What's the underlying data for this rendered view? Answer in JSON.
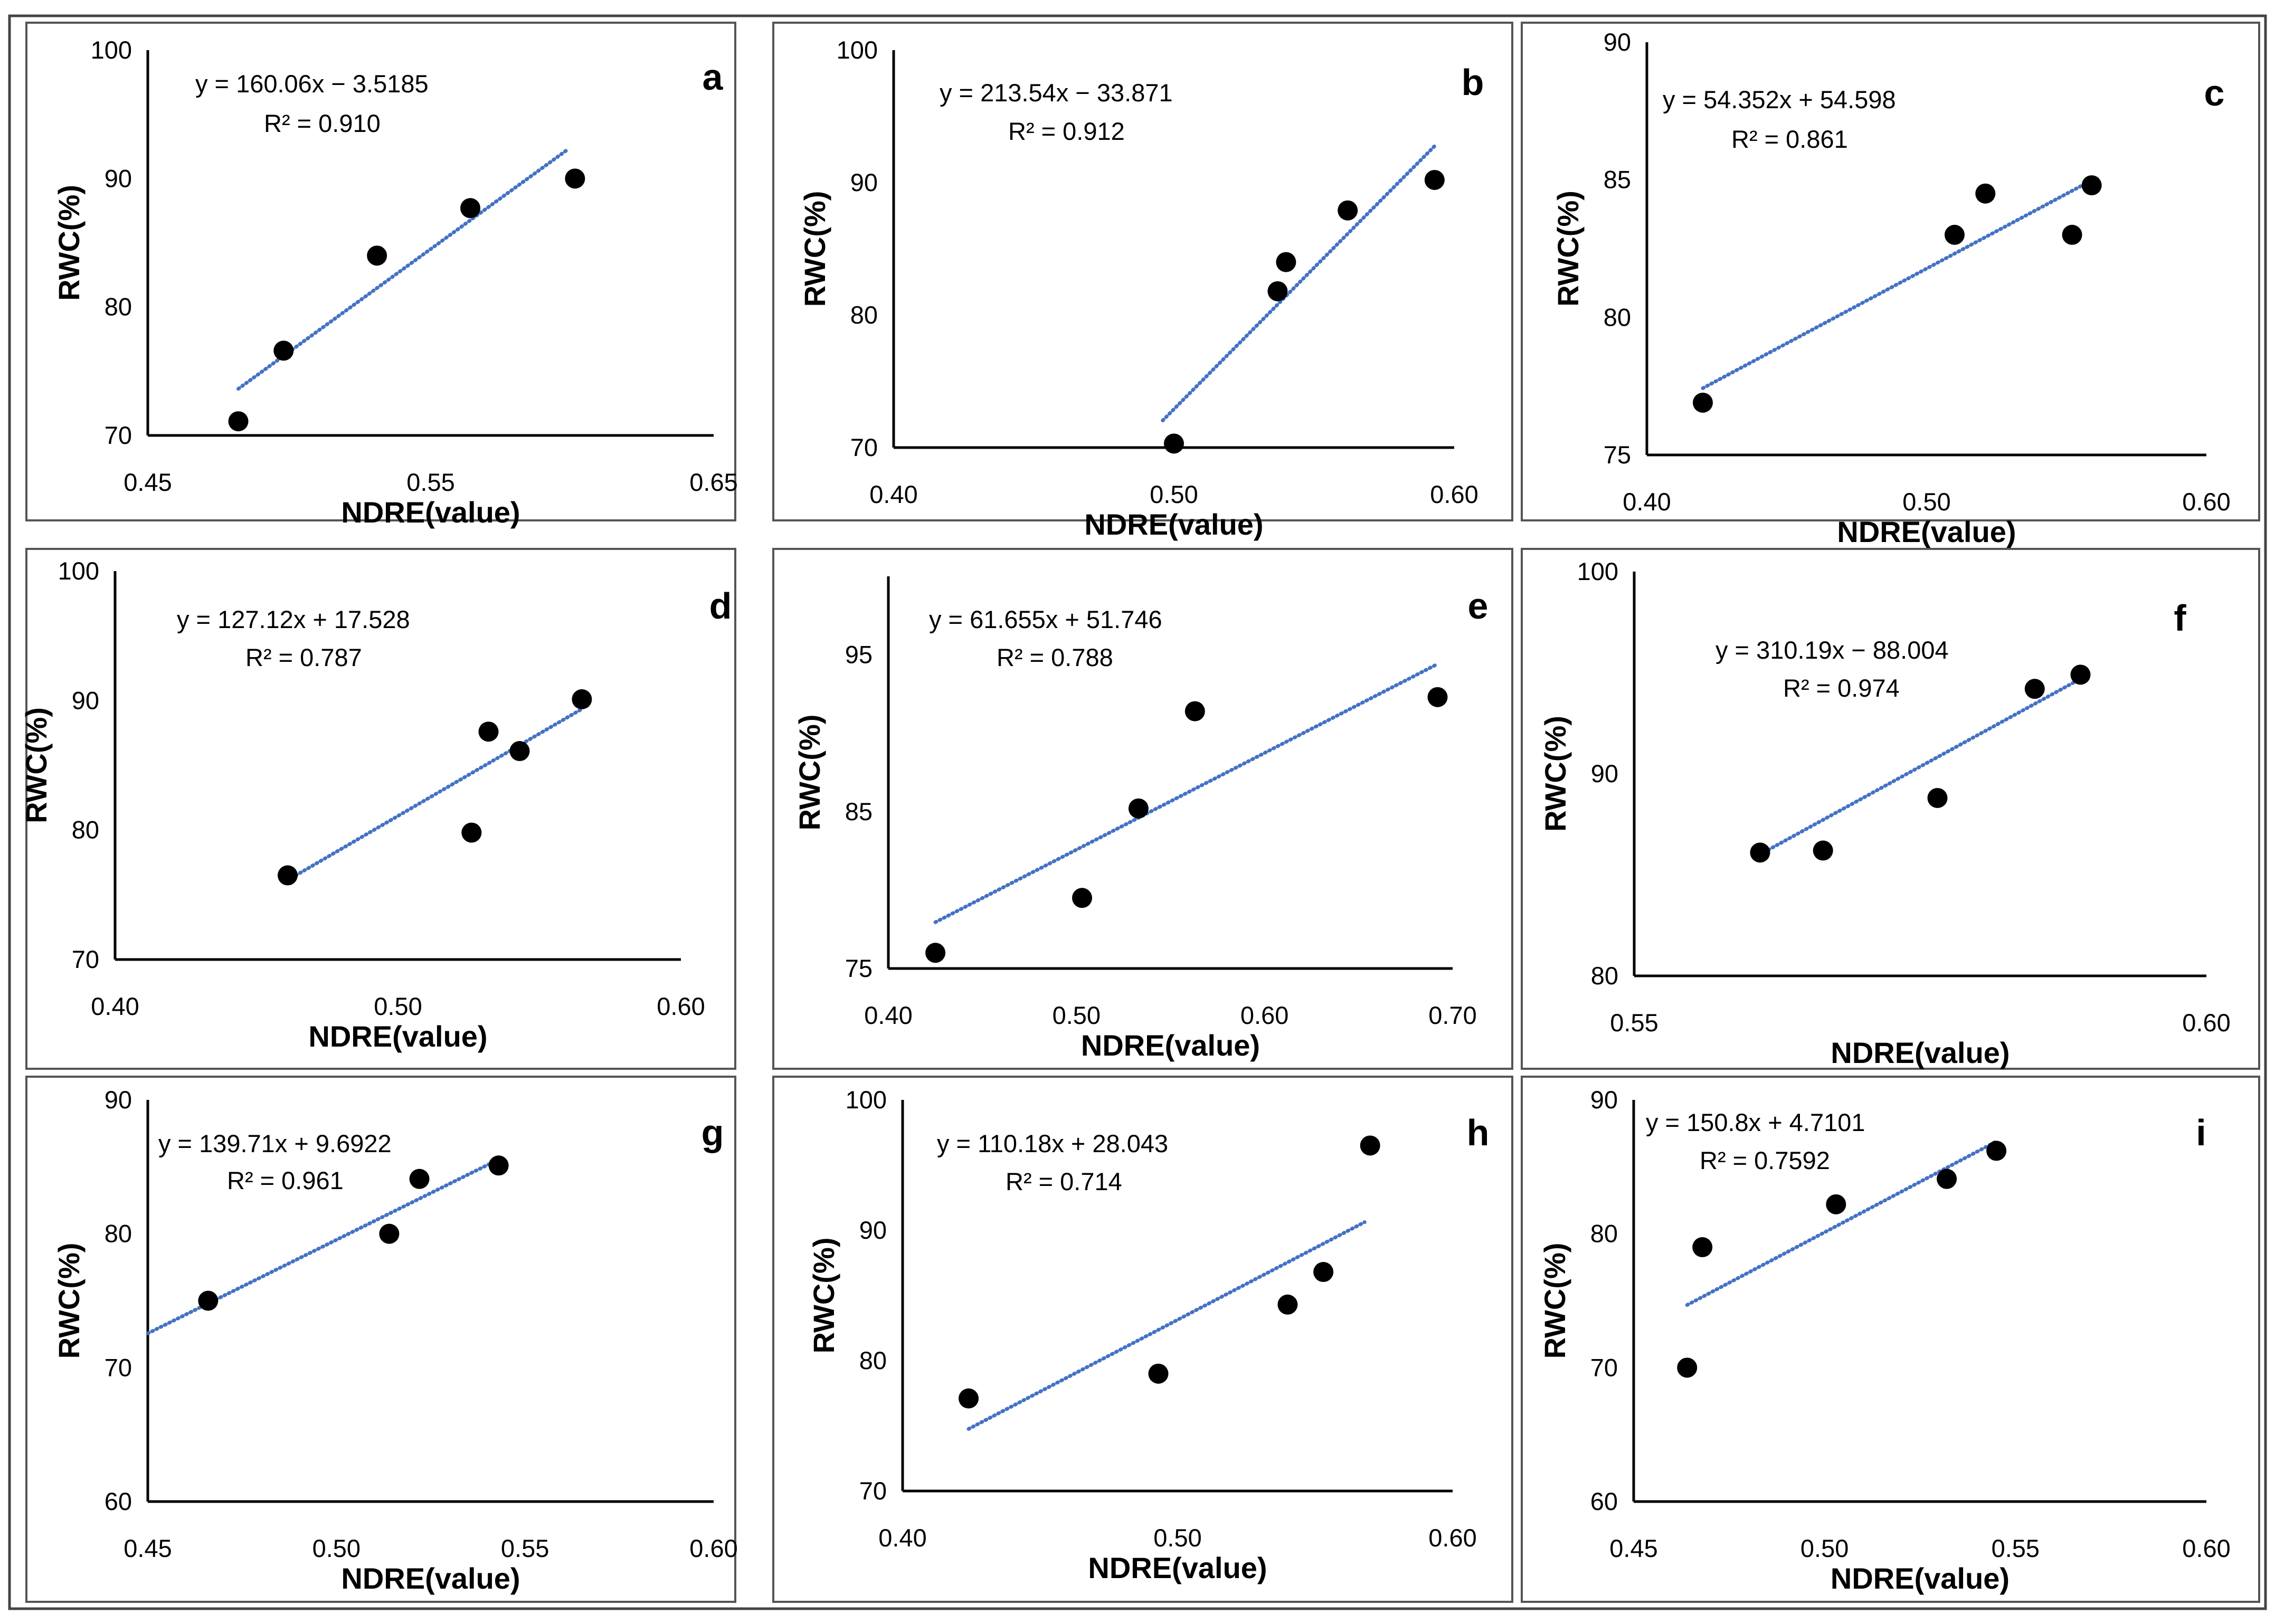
{
  "figure": {
    "style": {
      "point_color": "#000000",
      "trend_color": "#4472C4",
      "frame_color": "#555555"
    }
  },
  "chart_data": [
    {
      "panel": "a",
      "type": "scatter",
      "xlabel": "NDRE(value)",
      "ylabel": "RWC(%)",
      "xlim": [
        0.45,
        0.65
      ],
      "ylim": [
        70,
        100
      ],
      "xticks": [
        "0.45",
        "0.55",
        "0.65"
      ],
      "xtick_values": [
        0.45,
        0.55,
        0.65
      ],
      "yticks": [
        "70",
        "80",
        "90",
        "100"
      ],
      "ytick_values": [
        70,
        80,
        90,
        100
      ],
      "points": [
        [
          0.482,
          71.1
        ],
        [
          0.498,
          76.6
        ],
        [
          0.531,
          84.0
        ],
        [
          0.564,
          87.7
        ],
        [
          0.601,
          90.0
        ]
      ],
      "trendline": {
        "slope": 160.06,
        "intercept": -3.5185,
        "x_range": [
          0.482,
          0.598
        ]
      },
      "equation": "y = 160.06x − 3.5185",
      "r2": "R² = 0.910"
    },
    {
      "panel": "b",
      "type": "scatter",
      "xlabel": "NDRE(value)",
      "ylabel": "RWC(%)",
      "xlim": [
        0.4,
        0.6
      ],
      "ylim": [
        70,
        100
      ],
      "xticks": [
        "0.40",
        "0.50",
        "0.60"
      ],
      "xtick_values": [
        0.4,
        0.5,
        0.6
      ],
      "yticks": [
        "70",
        "80",
        "90",
        "100"
      ],
      "ytick_values": [
        70,
        80,
        90,
        100
      ],
      "points": [
        [
          0.5,
          70.3
        ],
        [
          0.537,
          81.8
        ],
        [
          0.54,
          84.0
        ],
        [
          0.562,
          87.9
        ],
        [
          0.593,
          90.2
        ]
      ],
      "trendline": {
        "slope": 213.54,
        "intercept": -33.871,
        "x_range": [
          0.496,
          0.593
        ]
      },
      "equation": "y = 213.54x − 33.871",
      "r2": "R² = 0.912"
    },
    {
      "panel": "c",
      "type": "scatter",
      "xlabel": "NDRE(value)",
      "ylabel": "RWC(%)",
      "xlim": [
        0.4,
        0.6
      ],
      "ylim": [
        75,
        90
      ],
      "xticks": [
        "0.40",
        "0.50",
        "0.60"
      ],
      "xtick_values": [
        0.4,
        0.5,
        0.6
      ],
      "yticks": [
        "75",
        "80",
        "85",
        "90"
      ],
      "ytick_values": [
        75,
        80,
        85,
        90
      ],
      "points": [
        [
          0.42,
          76.9
        ],
        [
          0.51,
          83.0
        ],
        [
          0.521,
          84.5
        ],
        [
          0.552,
          83.0
        ],
        [
          0.559,
          84.8
        ]
      ],
      "trendline": {
        "slope": 54.352,
        "intercept": 54.598,
        "x_range": [
          0.42,
          0.559
        ]
      },
      "equation": "y = 54.352x + 54.598",
      "r2": "R² = 0.861"
    },
    {
      "panel": "d",
      "type": "scatter",
      "xlabel": "NDRE(value)",
      "ylabel": "RWC(%)",
      "xlim": [
        0.4,
        0.6
      ],
      "ylim": [
        70,
        100
      ],
      "xticks": [
        "0.40",
        "0.50",
        "0.60"
      ],
      "xtick_values": [
        0.4,
        0.5,
        0.6
      ],
      "yticks": [
        "70",
        "80",
        "90",
        "100"
      ],
      "ytick_values": [
        70,
        80,
        90,
        100
      ],
      "points": [
        [
          0.461,
          76.5
        ],
        [
          0.526,
          79.8
        ],
        [
          0.532,
          87.6
        ],
        [
          0.543,
          86.1
        ],
        [
          0.565,
          90.1
        ]
      ],
      "trendline": {
        "slope": 127.12,
        "intercept": 17.528,
        "x_range": [
          0.461,
          0.565
        ]
      },
      "equation": "y = 127.12x + 17.528",
      "r2": "R² = 0.787"
    },
    {
      "panel": "e",
      "type": "scatter",
      "xlabel": "NDRE(value)",
      "ylabel": "RWC(%)",
      "xlim": [
        0.4,
        0.7
      ],
      "ylim": [
        75,
        100
      ],
      "xticks": [
        "0.40",
        "0.50",
        "0.60",
        "0.70"
      ],
      "xtick_values": [
        0.4,
        0.5,
        0.6,
        0.7
      ],
      "yticks": [
        "75",
        "85",
        "95"
      ],
      "ytick_values": [
        75,
        85,
        95
      ],
      "points": [
        [
          0.425,
          76.0
        ],
        [
          0.503,
          79.5
        ],
        [
          0.533,
          85.2
        ],
        [
          0.563,
          91.4
        ],
        [
          0.692,
          92.3
        ]
      ],
      "trendline": {
        "slope": 61.655,
        "intercept": 51.746,
        "x_range": [
          0.425,
          0.692
        ]
      },
      "equation": "y = 61.655x + 51.746",
      "r2": "R² = 0.788"
    },
    {
      "panel": "f",
      "type": "scatter",
      "xlabel": "NDRE(value)",
      "ylabel": "RWC(%)",
      "xlim": [
        0.55,
        0.6
      ],
      "ylim": [
        80,
        100
      ],
      "xticks": [
        "0.55",
        "0.60"
      ],
      "xtick_values": [
        0.55,
        0.6
      ],
      "yticks": [
        "80",
        "90",
        "100"
      ],
      "ytick_values": [
        80,
        90,
        100
      ],
      "points": [
        [
          0.561,
          86.1
        ],
        [
          0.5665,
          86.2
        ],
        [
          0.5765,
          88.8
        ],
        [
          0.585,
          94.2
        ],
        [
          0.589,
          94.9
        ]
      ],
      "trendline": {
        "slope": 310.19,
        "intercept": -88.004,
        "x_range": [
          0.561,
          0.589
        ]
      },
      "equation": "y = 310.19x − 88.004",
      "r2": "R² = 0.974"
    },
    {
      "panel": "g",
      "type": "scatter",
      "xlabel": "NDRE(value)",
      "ylabel": "RWC(%)",
      "xlim": [
        0.45,
        0.6
      ],
      "ylim": [
        60,
        90
      ],
      "xticks": [
        "0.45",
        "0.50",
        "0.55",
        "0.60"
      ],
      "xtick_values": [
        0.45,
        0.5,
        0.55,
        0.6
      ],
      "yticks": [
        "60",
        "70",
        "80",
        "90"
      ],
      "ytick_values": [
        60,
        70,
        80,
        90
      ],
      "points": [
        [
          0.466,
          75.0
        ],
        [
          0.514,
          80.0
        ],
        [
          0.522,
          84.1
        ],
        [
          0.543,
          85.1
        ]
      ],
      "trendline": {
        "slope": 139.71,
        "intercept": 9.6922,
        "x_range": [
          0.45,
          0.543
        ]
      },
      "equation": "y = 139.71x + 9.6922",
      "r2": "R² = 0.961"
    },
    {
      "panel": "h",
      "type": "scatter",
      "xlabel": "NDRE(value)",
      "ylabel": "RWC(%)",
      "xlim": [
        0.4,
        0.6
      ],
      "ylim": [
        70,
        100
      ],
      "xticks": [
        "0.40",
        "0.50",
        "0.60"
      ],
      "xtick_values": [
        0.4,
        0.5,
        0.6
      ],
      "yticks": [
        "70",
        "80",
        "90",
        "100"
      ],
      "ytick_values": [
        70,
        80,
        90,
        100
      ],
      "points": [
        [
          0.424,
          77.1
        ],
        [
          0.493,
          79.0
        ],
        [
          0.54,
          84.3
        ],
        [
          0.553,
          86.8
        ],
        [
          0.57,
          96.5
        ]
      ],
      "trendline": {
        "slope": 110.18,
        "intercept": 28.043,
        "x_range": [
          0.424,
          0.568
        ]
      },
      "equation": "y = 110.18x + 28.043",
      "r2": "R² = 0.714"
    },
    {
      "panel": "i",
      "type": "scatter",
      "xlabel": "NDRE(value)",
      "ylabel": "RWC(%)",
      "xlim": [
        0.45,
        0.6
      ],
      "ylim": [
        60,
        90
      ],
      "xticks": [
        "0.45",
        "0.50",
        "0.55",
        "0.60"
      ],
      "xtick_values": [
        0.45,
        0.5,
        0.55,
        0.6
      ],
      "yticks": [
        "60",
        "70",
        "80",
        "90"
      ],
      "ytick_values": [
        60,
        70,
        80,
        90
      ],
      "points": [
        [
          0.464,
          70.0
        ],
        [
          0.468,
          79.0
        ],
        [
          0.503,
          82.2
        ],
        [
          0.532,
          84.1
        ],
        [
          0.545,
          86.2
        ]
      ],
      "trendline": {
        "slope": 150.8,
        "intercept": 4.7101,
        "x_range": [
          0.464,
          0.545
        ]
      },
      "equation": "y = 150.8x + 4.7101",
      "r2": "R² = 0.7592"
    }
  ]
}
